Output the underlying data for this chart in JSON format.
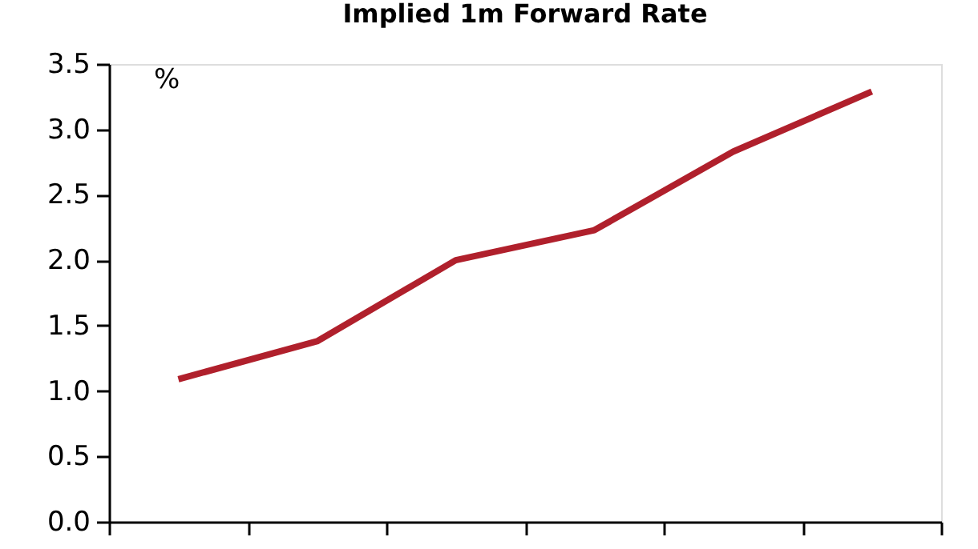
{
  "chart_data": {
    "type": "line",
    "title": "Implied 1m Forward Rate",
    "categories": [
      null,
      null,
      null,
      null,
      null,
      null
    ],
    "series": [
      {
        "color": "#b0202c",
        "values": [
          1.09,
          1.38,
          2.0,
          2.23,
          2.83,
          3.29
        ]
      }
    ],
    "ylim": [
      0,
      3.5
    ],
    "yticks": [
      {
        "value": 0,
        "label": "0.0"
      },
      0.5,
      {
        "value": 1,
        "label": "1.0"
      },
      1.5,
      {
        "value": 2,
        "label": "2.0"
      },
      2.5,
      {
        "value": 3,
        "label": "3.0"
      },
      3.5
    ],
    "annotations": [
      "%"
    ],
    "grid": false,
    "marker": "none",
    "line_style": "solid",
    "tick_labels": "y"
  }
}
